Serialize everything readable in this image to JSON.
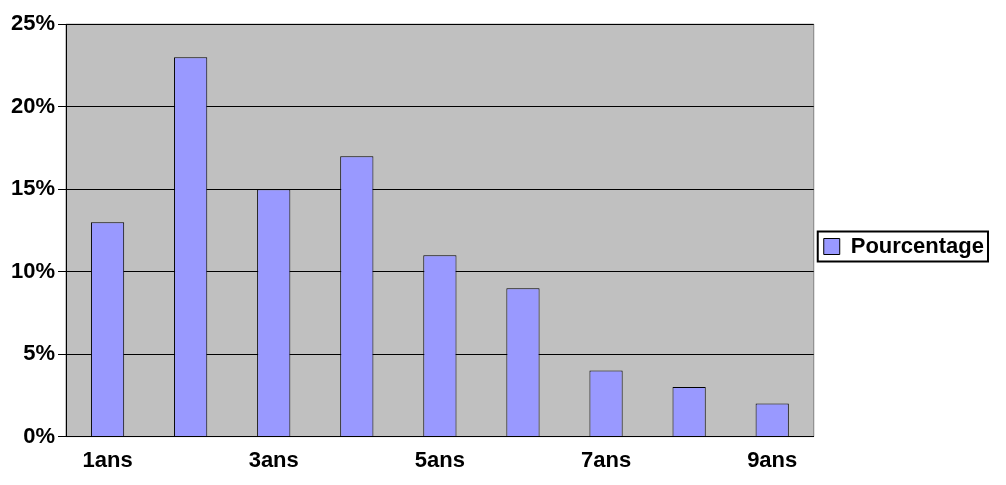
{
  "chart_data": {
    "type": "bar",
    "categories": [
      "1ans",
      null,
      "3ans",
      null,
      "5ans",
      null,
      "7ans",
      null,
      "9ans"
    ],
    "series": [
      {
        "name": "Pourcentage",
        "color": "#9999ff",
        "values": [
          13,
          23,
          15,
          17,
          11,
          9,
          4,
          3,
          2
        ]
      }
    ],
    "ylim": [
      0,
      25
    ],
    "yticks": [
      {
        "value": 0,
        "label": "0%"
      },
      {
        "value": 5,
        "label": "5%"
      },
      {
        "value": 10,
        "label": "10%"
      },
      {
        "value": 15,
        "label": "15%"
      },
      {
        "value": 20,
        "label": "20%"
      },
      {
        "value": 25,
        "label": "25%"
      }
    ],
    "grid": "y",
    "legend": "right"
  }
}
